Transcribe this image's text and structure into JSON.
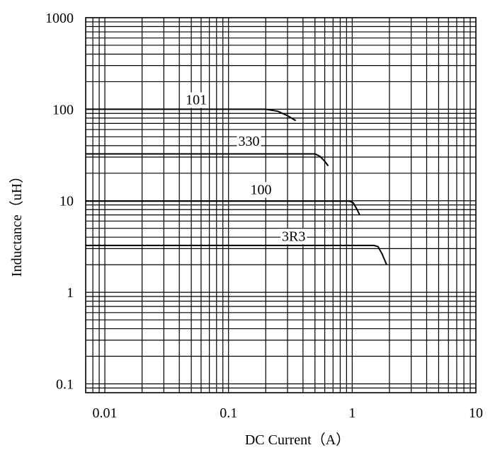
{
  "chart_data": {
    "type": "line",
    "title": "",
    "xlabel": "DC Current（A）",
    "ylabel": "Inductance（uH）",
    "x_scale": "log",
    "y_scale": "log",
    "xlim": [
      0.007,
      10
    ],
    "ylim": [
      0.08,
      1000
    ],
    "x_ticks": [
      {
        "value": 0.01,
        "label": "0.01"
      },
      {
        "value": 0.1,
        "label": "0.1"
      },
      {
        "value": 1,
        "label": "1"
      },
      {
        "value": 10,
        "label": "10"
      }
    ],
    "y_ticks": [
      {
        "value": 0.1,
        "label": "0.1"
      },
      {
        "value": 1,
        "label": "1"
      },
      {
        "value": 10,
        "label": "10"
      },
      {
        "value": 100,
        "label": "100"
      },
      {
        "value": 1000,
        "label": "1000"
      }
    ],
    "grid": true,
    "legend": "none",
    "series": [
      {
        "name": "101",
        "label_at": {
          "x": 0.045,
          "y": 113
        },
        "points": [
          [
            0.007,
            100
          ],
          [
            0.2,
            100
          ],
          [
            0.25,
            95
          ],
          [
            0.3,
            85
          ],
          [
            0.35,
            75
          ]
        ]
      },
      {
        "name": "330",
        "label_at": {
          "x": 0.12,
          "y": 40
        },
        "points": [
          [
            0.007,
            32.5
          ],
          [
            0.5,
            32.5
          ],
          [
            0.55,
            30.5
          ],
          [
            0.6,
            27
          ],
          [
            0.64,
            24
          ]
        ]
      },
      {
        "name": "100",
        "label_at": {
          "x": 0.15,
          "y": 11.8
        },
        "points": [
          [
            0.007,
            9.9
          ],
          [
            0.95,
            9.9
          ],
          [
            1.02,
            9.5
          ],
          [
            1.08,
            8.3
          ],
          [
            1.15,
            7
          ]
        ]
      },
      {
        "name": "3R3",
        "label_at": {
          "x": 0.27,
          "y": 3.65
        },
        "points": [
          [
            0.007,
            3.25
          ],
          [
            1.5,
            3.25
          ],
          [
            1.62,
            3.15
          ],
          [
            1.75,
            2.6
          ],
          [
            1.9,
            2
          ]
        ]
      }
    ]
  }
}
